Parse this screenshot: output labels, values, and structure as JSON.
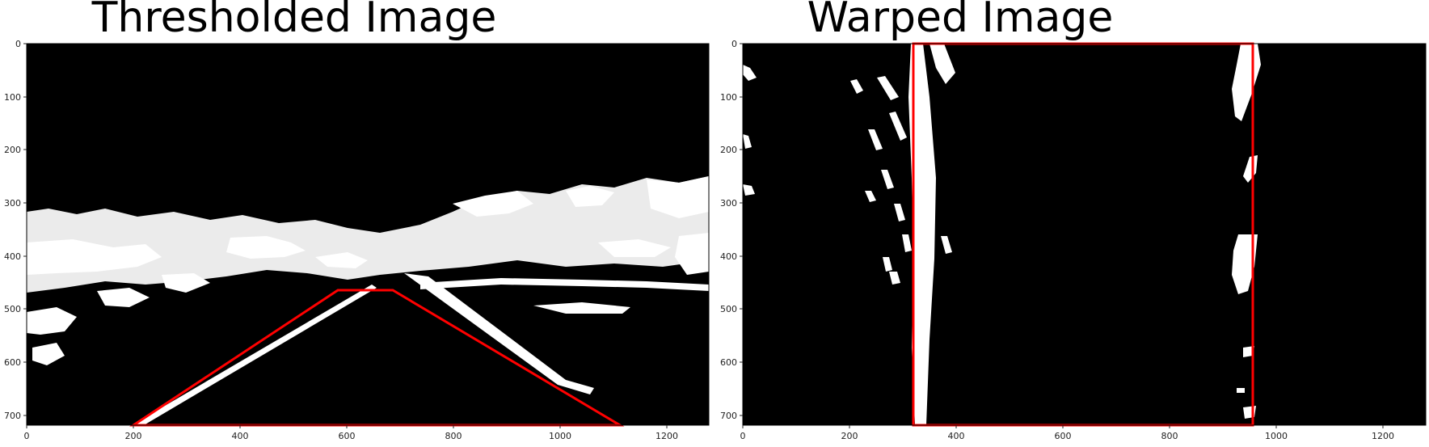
{
  "figure": {
    "panels": [
      {
        "title": "Thresholded Image",
        "x_ticks": [
          "0",
          "200",
          "400",
          "600",
          "800",
          "1000",
          "1200"
        ],
        "y_ticks": [
          "0",
          "100",
          "200",
          "300",
          "400",
          "500",
          "600",
          "700"
        ],
        "overlay": {
          "shape": "trapezoid",
          "color": "#ff0000"
        }
      },
      {
        "title": "Warped Image",
        "x_ticks": [
          "0",
          "200",
          "400",
          "600",
          "800",
          "1000",
          "1200"
        ],
        "y_ticks": [
          "0",
          "100",
          "200",
          "300",
          "400",
          "500",
          "600",
          "700"
        ],
        "overlay": {
          "shape": "rectangle",
          "color": "#ff0000"
        }
      }
    ]
  },
  "colors": {
    "background": "#000000",
    "foreground": "#ffffff",
    "overlay": "#ff0000"
  }
}
